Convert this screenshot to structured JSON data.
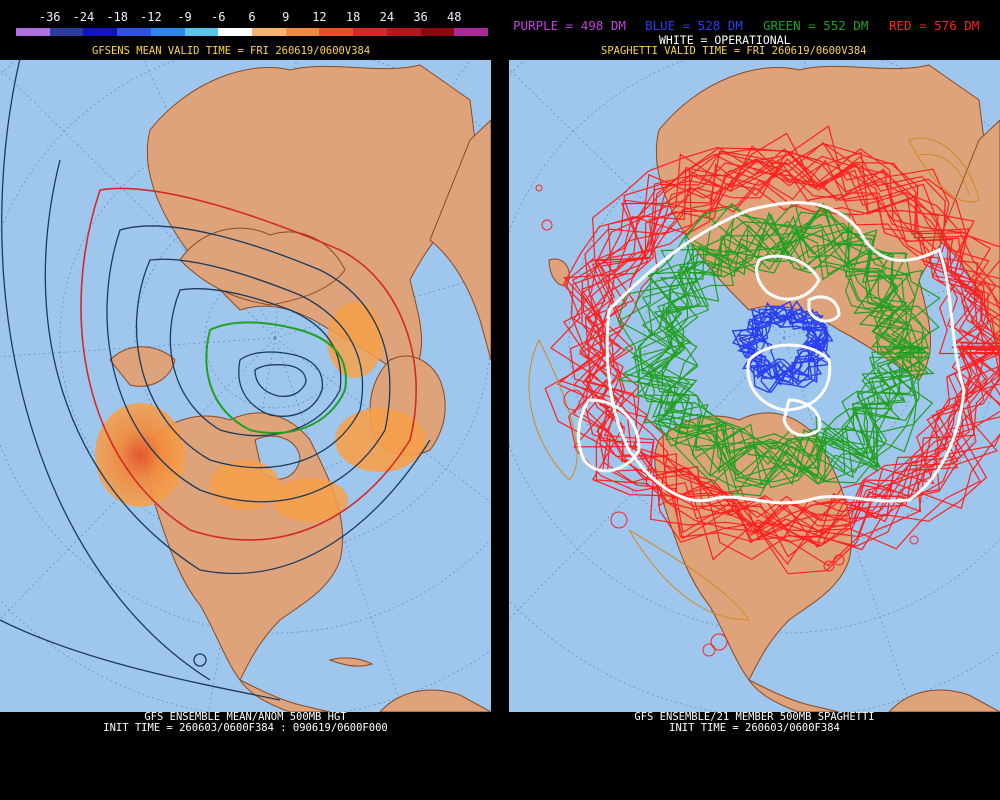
{
  "left": {
    "legend": {
      "labels": [
        "-36",
        "-24",
        "-18",
        "-12",
        "-9",
        "-6",
        "6",
        "9",
        "12",
        "18",
        "24",
        "36",
        "48"
      ],
      "colors": [
        "#b070e0",
        "#2a3d9f",
        "#1515c0",
        "#2f52e0",
        "#2f86e8",
        "#5cc6ea",
        "#ffffff",
        "#f5b470",
        "#f08a3e",
        "#e8502a",
        "#d42828",
        "#b01a1a",
        "#8a0a0a",
        "#aa2a9a"
      ]
    },
    "header": "GFSENS MEAN VALID TIME = FRI 260619/0600V384",
    "footer_line1": "GFS ENSEMBLE MEAN/ANOM 500MB HGT",
    "footer_line2": "INIT TIME = 260603/0600F384 : 090619/0600F000"
  },
  "right": {
    "legend_items": [
      {
        "text": "PURPLE = 498 DM",
        "color": "#c040e0"
      },
      {
        "text": "BLUE = 528 DM",
        "color": "#2e3ef0"
      },
      {
        "text": "GREEN = 552 DM",
        "color": "#22a022"
      },
      {
        "text": "RED = 576 DM",
        "color": "#ff2020"
      }
    ],
    "operational_note": "WHITE = OPERATIONAL",
    "header": "SPAGHETTI VALID TIME = FRI 260619/0600V384",
    "footer_line1": "GFS ENSEMBLE/21 MEMBER 500MB SPAGHETTI",
    "footer_line2": "INIT TIME = 260603/0600F384"
  },
  "colors": {
    "ocean": "#9fc7ee",
    "land": "#dfa37c",
    "border": "#8a4a22",
    "header_text": "#ffd44a",
    "contour_dark": "#1e3a5a",
    "anomaly": "#f7a04a"
  }
}
